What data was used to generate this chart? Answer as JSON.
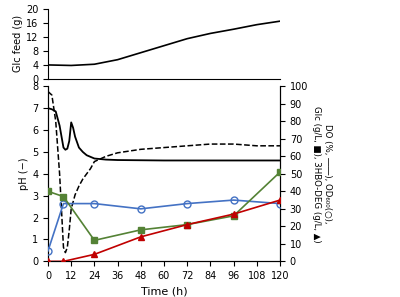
{
  "top_panel": {
    "time": [
      0,
      8,
      12,
      24,
      36,
      48,
      60,
      72,
      84,
      96,
      108,
      120
    ],
    "glc_feed": [
      4.0,
      3.9,
      3.85,
      4.2,
      5.5,
      7.5,
      9.5,
      11.5,
      13.0,
      14.2,
      15.5,
      16.5
    ],
    "ylim": [
      0,
      20
    ],
    "yticks": [
      0,
      4,
      8,
      12,
      16,
      20
    ],
    "ylabel": "Glc feed (g)"
  },
  "bottom_panel": {
    "xlabel": "Time (h)",
    "xticks": [
      0,
      12,
      24,
      36,
      48,
      60,
      72,
      84,
      96,
      108,
      120
    ],
    "ylabel_left": "pH (−)",
    "ylim_left": [
      0,
      8
    ],
    "yticks_left": [
      0,
      1,
      2,
      3,
      4,
      5,
      6,
      7,
      8
    ],
    "ylim_right": [
      0,
      100
    ],
    "yticks_right": [
      0,
      10,
      20,
      30,
      40,
      50,
      60,
      70,
      80,
      90,
      100
    ],
    "ph_time": [
      0,
      2,
      4,
      6,
      8,
      9,
      10,
      11,
      12,
      13,
      14,
      16,
      18,
      20,
      24,
      30,
      36,
      48,
      60,
      72,
      84,
      96,
      108,
      120
    ],
    "ph_values": [
      7.0,
      6.95,
      6.85,
      6.2,
      5.2,
      5.1,
      5.15,
      5.5,
      6.35,
      6.1,
      5.7,
      5.2,
      5.0,
      4.85,
      4.7,
      4.65,
      4.63,
      4.62,
      4.61,
      4.61,
      4.61,
      4.61,
      4.61,
      4.61
    ],
    "do_time": [
      0,
      1,
      2,
      4,
      6,
      8,
      9,
      10,
      11,
      12,
      14,
      16,
      18,
      20,
      22,
      24,
      30,
      36,
      48,
      60,
      72,
      84,
      96,
      108,
      120
    ],
    "do_values": [
      97,
      96,
      95,
      80,
      50,
      8,
      5,
      8,
      18,
      30,
      38,
      43,
      47,
      50,
      53,
      57,
      60,
      62,
      64,
      65,
      66,
      67,
      67,
      66,
      66
    ],
    "od_time": [
      0,
      8,
      24,
      48,
      72,
      96,
      120
    ],
    "od_values": [
      6,
      33,
      33,
      30,
      33,
      35,
      33
    ],
    "glc_time": [
      0,
      8,
      24,
      48,
      72,
      96,
      120
    ],
    "glc_values": [
      40,
      37,
      12,
      18,
      21,
      26,
      51
    ],
    "hbo_time": [
      0,
      8,
      24,
      48,
      72,
      96,
      120
    ],
    "hbo_values": [
      0,
      0,
      4,
      14,
      21,
      27,
      35
    ],
    "ph_color": "#000000",
    "do_color": "#000000",
    "od_color": "#4472c4",
    "glc_color": "#548235",
    "hbo_color": "#c00000"
  }
}
